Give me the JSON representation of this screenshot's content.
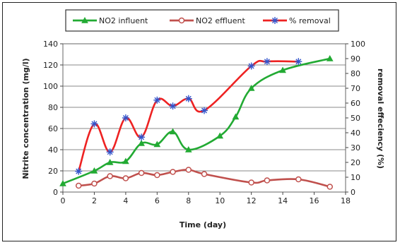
{
  "chart_data": {
    "type": "line",
    "title": "",
    "xlabel": "Time (day)",
    "ylabel_left": "Nitrite concentration (mg/l)",
    "ylabel_right": "removal effeciency (%)",
    "xlim": [
      0,
      18
    ],
    "x_ticks": [
      0,
      2,
      4,
      6,
      8,
      10,
      12,
      14,
      16,
      18
    ],
    "x_tick_labels": [
      "0",
      "2",
      "4",
      "6",
      "8",
      "10",
      "12",
      "14",
      "16",
      "18"
    ],
    "ylim_left": [
      0,
      140
    ],
    "y_ticks_left": [
      0,
      20,
      40,
      60,
      80,
      100,
      120,
      140
    ],
    "ylim_right": [
      0,
      100
    ],
    "y_ticks_right": [
      0,
      10,
      20,
      30,
      40,
      50,
      60,
      70,
      80,
      90,
      100
    ],
    "grid": "horizontal",
    "legend_position": "top",
    "series": [
      {
        "name": "NO2 influent",
        "axis": "left",
        "color": "#22aa33",
        "marker": "triangle",
        "points": [
          [
            0,
            8
          ],
          [
            2,
            20
          ],
          [
            3,
            28
          ],
          [
            4,
            29
          ],
          [
            5,
            46
          ],
          [
            6,
            45
          ],
          [
            7,
            57
          ],
          [
            8,
            40
          ],
          [
            10,
            53
          ],
          [
            11,
            71
          ],
          [
            12,
            98
          ],
          [
            14,
            115
          ],
          [
            17,
            126
          ]
        ]
      },
      {
        "name": "NO2 effluent",
        "axis": "left",
        "color": "#c0504d",
        "marker": "circle",
        "points": [
          [
            1,
            6
          ],
          [
            2,
            8
          ],
          [
            3,
            15
          ],
          [
            4,
            13
          ],
          [
            5,
            18
          ],
          [
            6,
            16
          ],
          [
            7,
            19
          ],
          [
            8,
            21
          ],
          [
            9,
            17
          ],
          [
            12,
            9
          ],
          [
            13,
            11
          ],
          [
            15,
            12
          ],
          [
            17,
            5
          ]
        ]
      },
      {
        "name": "% removal",
        "axis": "right",
        "color": "#ee2222",
        "marker": "star",
        "points": [
          [
            1,
            14
          ],
          [
            2,
            46
          ],
          [
            3,
            27
          ],
          [
            4,
            50
          ],
          [
            5,
            37
          ],
          [
            6,
            62
          ],
          [
            7,
            58
          ],
          [
            8,
            63
          ],
          [
            9,
            55
          ],
          [
            12,
            85
          ],
          [
            13,
            88
          ],
          [
            15,
            88
          ]
        ]
      }
    ]
  }
}
